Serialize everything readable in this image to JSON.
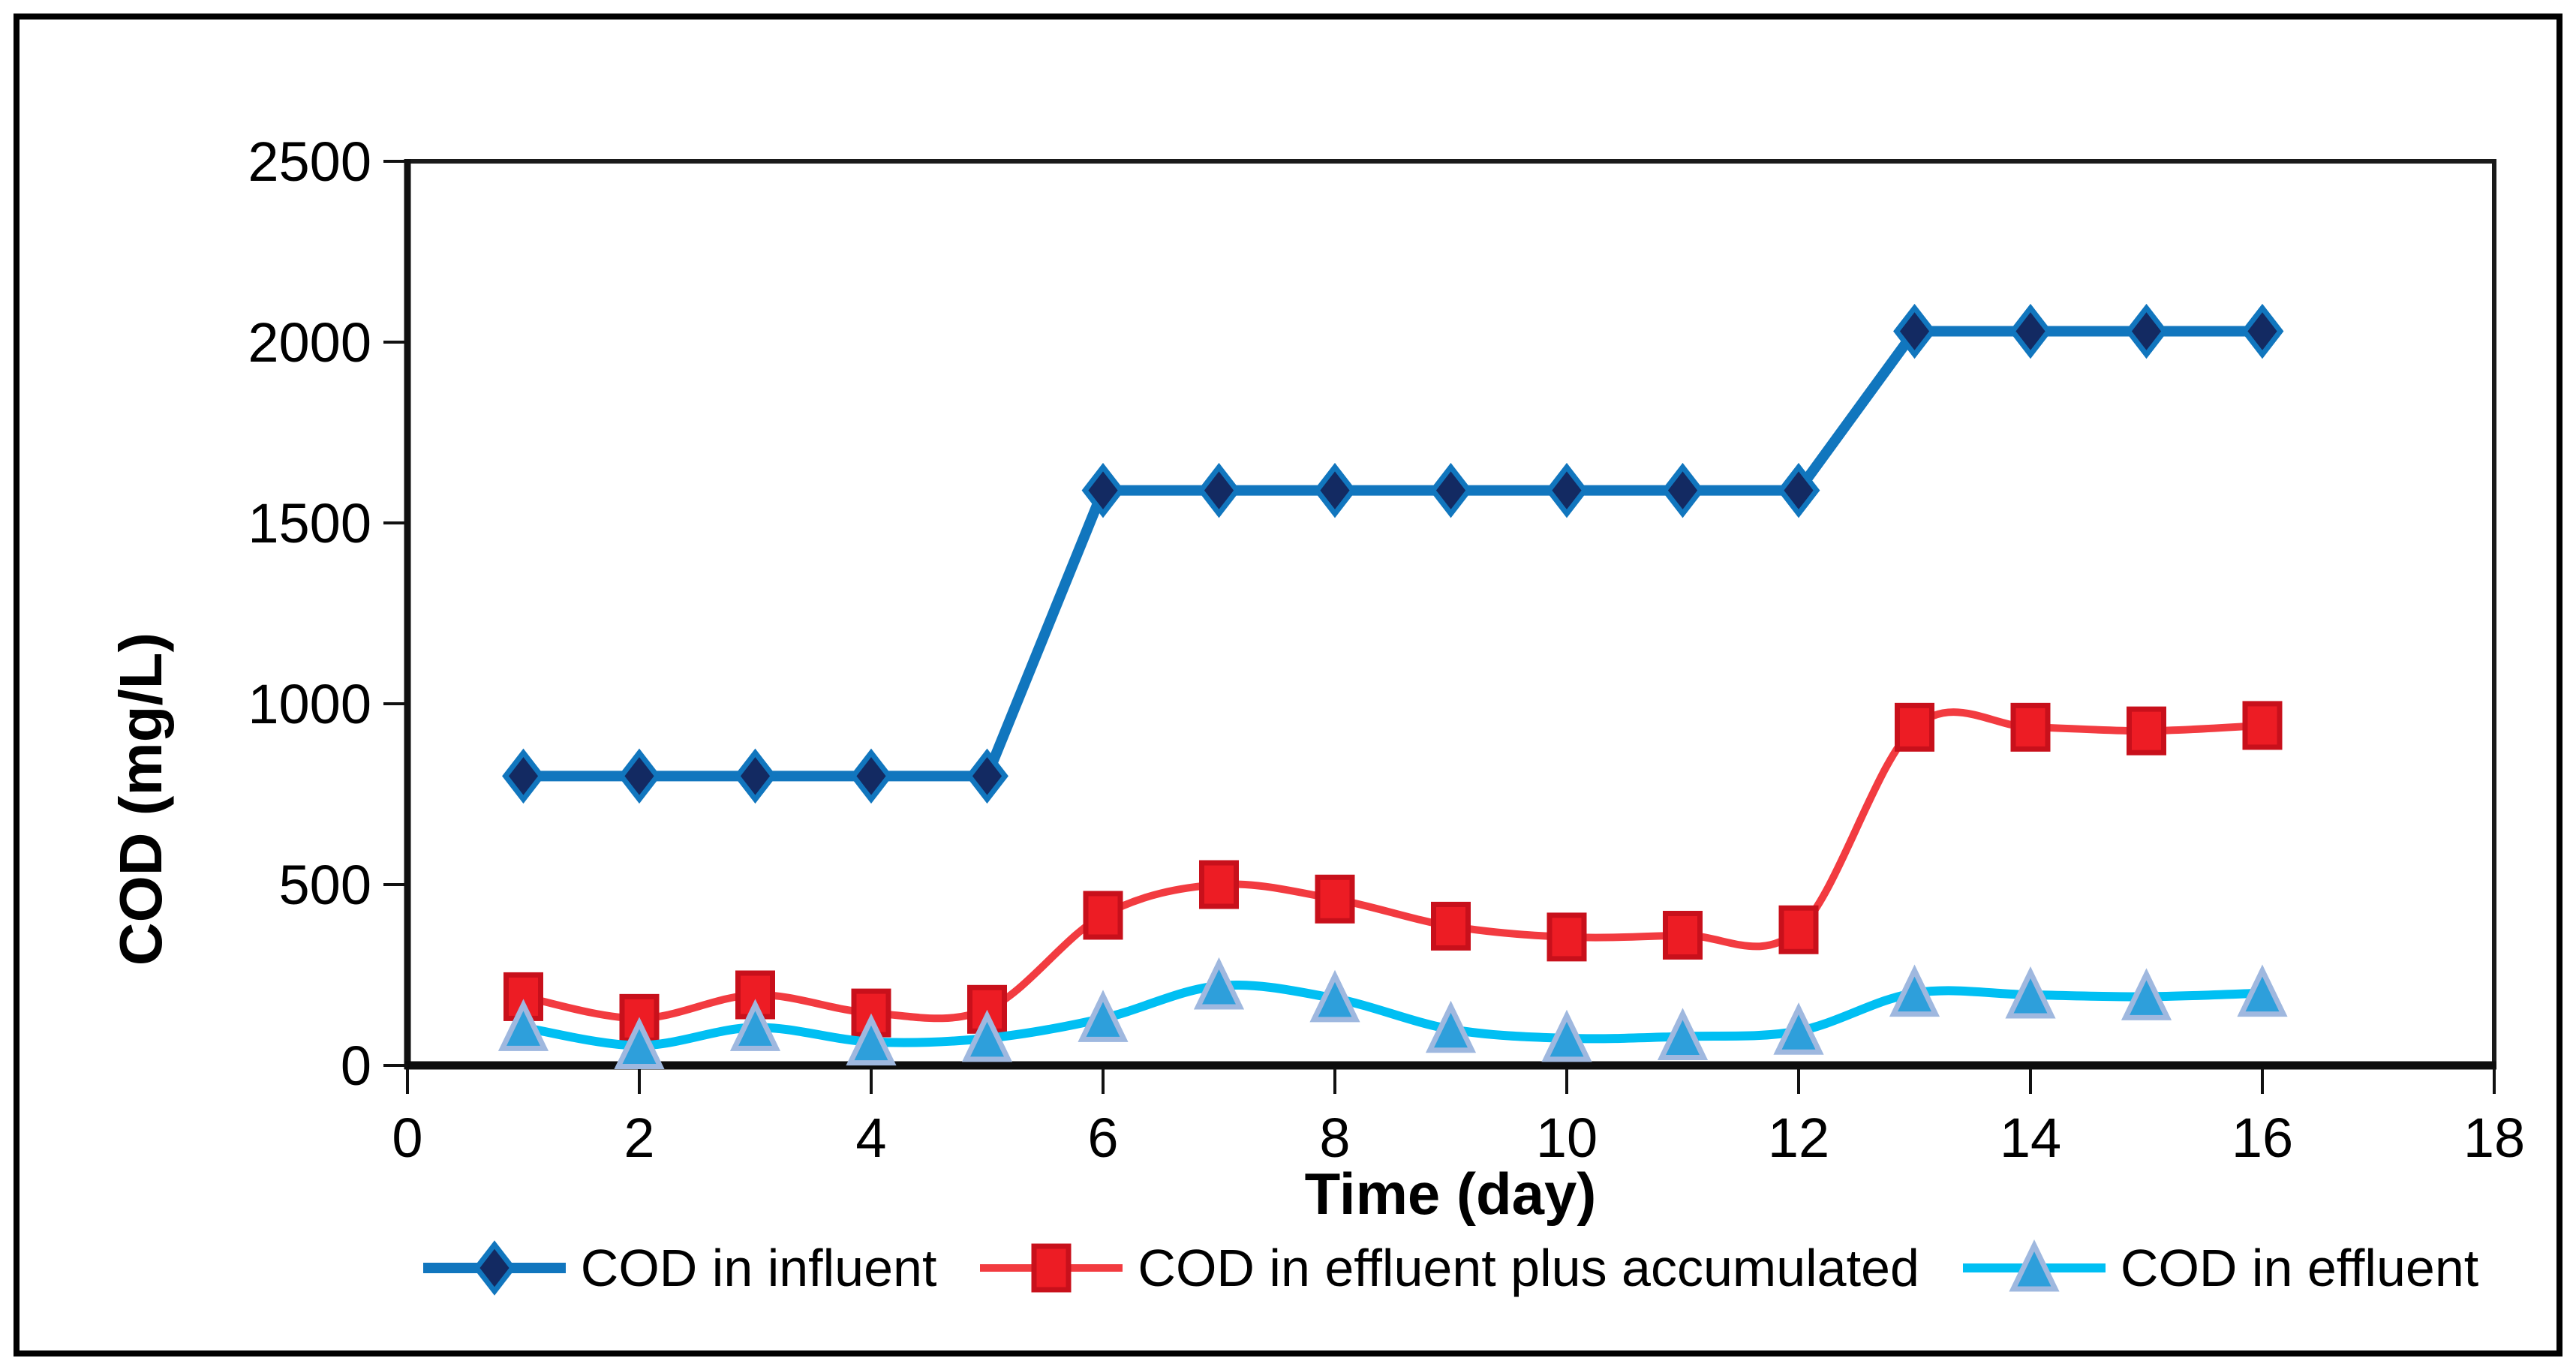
{
  "chart_data": {
    "type": "line",
    "title": "",
    "xlabel": "Time (day)",
    "ylabel": "COD (mg/L)",
    "xlim": [
      0,
      18
    ],
    "ylim": [
      0,
      2500
    ],
    "x_ticks": [
      0,
      2,
      4,
      6,
      8,
      10,
      12,
      14,
      16,
      18
    ],
    "y_ticks": [
      0,
      500,
      1000,
      1500,
      2000,
      2500
    ],
    "grid": false,
    "legend_position": "bottom-center",
    "background_color": "#ffffff",
    "frame_color": "#1a1a1a",
    "x": [
      1,
      2,
      3,
      4,
      5,
      6,
      7,
      8,
      9,
      10,
      11,
      12,
      13,
      14,
      15,
      16
    ],
    "series": [
      {
        "name": "COD in influent",
        "line_color": "#1176BE",
        "line_width": 14,
        "smooth": false,
        "marker": "diamond",
        "marker_fill": "#132A62",
        "marker_stroke": "#1176BE",
        "values": [
          800,
          800,
          800,
          800,
          800,
          1590,
          1590,
          1590,
          1590,
          1590,
          1590,
          1590,
          2030,
          2030,
          2030,
          2030
        ]
      },
      {
        "name": "COD in effluent plus accumulated",
        "line_color": "#F23B40",
        "line_width": 10,
        "smooth": true,
        "marker": "square",
        "marker_fill": "#ED1C24",
        "marker_stroke": "#C8101B",
        "values": [
          190,
          130,
          195,
          145,
          155,
          415,
          500,
          460,
          385,
          355,
          360,
          375,
          935,
          935,
          925,
          940
        ]
      },
      {
        "name": "COD in effluent",
        "line_color": "#00BFF3",
        "line_width": 12,
        "smooth": true,
        "marker": "triangle",
        "marker_fill": "#2E9FDB",
        "marker_stroke": "#9FB8DF",
        "values": [
          105,
          55,
          105,
          65,
          75,
          130,
          220,
          185,
          100,
          75,
          80,
          95,
          200,
          195,
          190,
          200
        ]
      }
    ]
  }
}
